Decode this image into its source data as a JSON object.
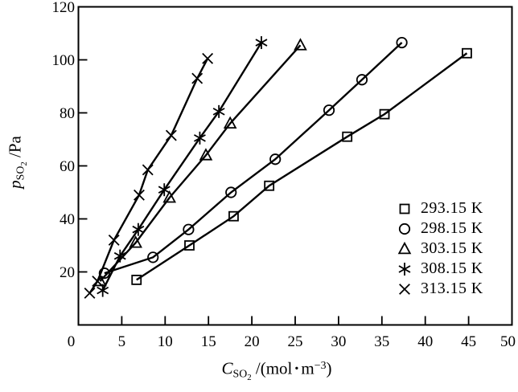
{
  "figure": {
    "background": "#ffffff",
    "ink_color": "#000000"
  },
  "axes": {
    "y_label": {
      "symbol": "p",
      "sub": "SO",
      "sub2": "2",
      "end": " /Pa"
    },
    "x_label": {
      "symbol": "C",
      "sub": "SO",
      "sub2": "2",
      "mid": " /(mol",
      "dot": "·",
      "unit": "m",
      "sup": "−3",
      "end": ")"
    }
  },
  "chart_data": {
    "type": "scatter",
    "title": "",
    "xlabel": "C_SO2 /(mol·m−3)",
    "ylabel": "p_SO2 /Pa",
    "xlim": [
      0,
      50
    ],
    "ylim": [
      0,
      120
    ],
    "xticks": [
      0,
      5,
      10,
      15,
      20,
      25,
      30,
      35,
      40,
      45,
      50
    ],
    "yticks": [
      20,
      40,
      60,
      80,
      100,
      120
    ],
    "grid": false,
    "legend_position": "lower-right",
    "series": [
      {
        "name": "293.15 K",
        "marker": "square",
        "points": [
          [
            6.7,
            17
          ],
          [
            12.8,
            30
          ],
          [
            17.9,
            41
          ],
          [
            22.0,
            52.5
          ],
          [
            31.0,
            71
          ],
          [
            35.3,
            79.5
          ],
          [
            44.8,
            102.5
          ]
        ]
      },
      {
        "name": "298.15 K",
        "marker": "circle",
        "points": [
          [
            3.0,
            19.5
          ],
          [
            8.6,
            25.5
          ],
          [
            12.7,
            36
          ],
          [
            17.6,
            50
          ],
          [
            22.7,
            62.5
          ],
          [
            28.9,
            81
          ],
          [
            32.7,
            92.5
          ],
          [
            37.3,
            106.5
          ]
        ]
      },
      {
        "name": "303.15 K",
        "marker": "triangle",
        "points": [
          [
            2.5,
            16.5
          ],
          [
            6.6,
            31
          ],
          [
            10.5,
            48
          ],
          [
            14.7,
            64
          ],
          [
            17.5,
            76
          ],
          [
            25.6,
            105.5
          ]
        ]
      },
      {
        "name": "308.15 K",
        "marker": "asterisk",
        "points": [
          [
            2.8,
            13
          ],
          [
            4.8,
            26
          ],
          [
            6.9,
            36
          ],
          [
            9.9,
            51
          ],
          [
            14.0,
            70.5
          ],
          [
            16.2,
            80.5
          ],
          [
            21.1,
            106.5
          ]
        ]
      },
      {
        "name": "313.15 K",
        "marker": "x",
        "points": [
          [
            1.3,
            12
          ],
          [
            2.2,
            16.5
          ],
          [
            4.1,
            32
          ],
          [
            7.0,
            49
          ],
          [
            8.0,
            58.5
          ],
          [
            10.7,
            71.5
          ],
          [
            13.7,
            93
          ],
          [
            14.9,
            100.5
          ]
        ]
      }
    ]
  }
}
